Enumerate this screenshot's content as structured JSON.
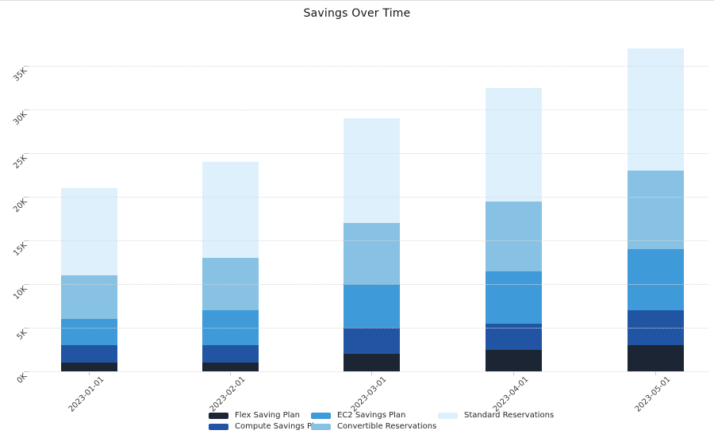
{
  "chart_data": {
    "type": "bar",
    "stacked": true,
    "title": "Savings Over Time",
    "categories": [
      "2023-01-01",
      "2023-02-01",
      "2023-03-01",
      "2023-04-01",
      "2023-05-01"
    ],
    "series": [
      {
        "name": "Flex Saving Plan",
        "color": "#1b2533",
        "values": [
          1000,
          1000,
          2000,
          2500,
          3000
        ]
      },
      {
        "name": "Compute Savings Plan",
        "color": "#2154a3",
        "values": [
          2000,
          2000,
          3000,
          3000,
          4000
        ]
      },
      {
        "name": "EC2 Savings Plan",
        "color": "#3e9ad8",
        "values": [
          3000,
          4000,
          5000,
          6000,
          7000
        ]
      },
      {
        "name": "Convertible Reservations",
        "color": "#87c1e3",
        "values": [
          5000,
          6000,
          7000,
          8000,
          9000
        ]
      },
      {
        "name": "Standard Reservations",
        "color": "#def0fb",
        "values": [
          10000,
          11000,
          12000,
          13000,
          14000
        ]
      }
    ],
    "stack_totals": [
      21000,
      24000,
      29000,
      32500,
      37000
    ],
    "xlabel": "",
    "ylabel": "",
    "y_axis": {
      "tick_labels": [
        "0K",
        "5K",
        "10K",
        "15K",
        "20K",
        "25K",
        "30K",
        "35K"
      ],
      "tick_values": [
        0,
        5000,
        10000,
        15000,
        20000,
        25000,
        30000,
        35000
      ],
      "range": [
        0,
        40000
      ]
    },
    "grid": {
      "horizontal": true,
      "style": "dotted",
      "drawn_over_bars": true
    },
    "legend": {
      "position": "bottom-center",
      "rows": 2,
      "columns": 3,
      "order": "column-major"
    },
    "tick_label_rotation_deg": -45
  }
}
